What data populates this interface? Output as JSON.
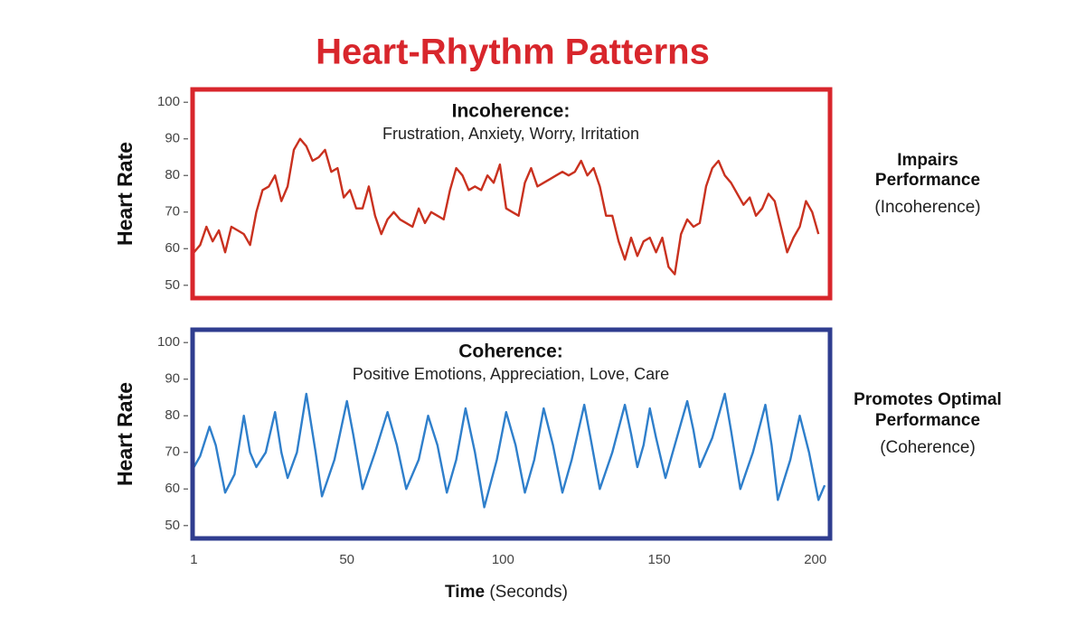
{
  "title": "Heart-Rhythm Patterns",
  "chart_data": [
    {
      "type": "line",
      "title": "Incoherence:",
      "subtitle": "Frustration, Anxiety, Worry, Irritation",
      "ylabel": "Heart Rate",
      "x": [
        1,
        3,
        5,
        7,
        9,
        11,
        13,
        15,
        17,
        19,
        21,
        23,
        25,
        27,
        29,
        31,
        33,
        35,
        37,
        39,
        41,
        43,
        45,
        47,
        49,
        51,
        53,
        55,
        57,
        59,
        61,
        63,
        65,
        67,
        69,
        71,
        73,
        75,
        77,
        79,
        81,
        83,
        85,
        87,
        89,
        91,
        93,
        95,
        97,
        99,
        101,
        103,
        105,
        107,
        109,
        111,
        113,
        115,
        117,
        119,
        121,
        123,
        125,
        127,
        129,
        131,
        133,
        135,
        137,
        139,
        141,
        143,
        145,
        147,
        149,
        151,
        153,
        155,
        157,
        159,
        161,
        163,
        165,
        167,
        169,
        171,
        173,
        175,
        177,
        179,
        181,
        183,
        185,
        187,
        189,
        191,
        193,
        195,
        197,
        199,
        201
      ],
      "values": [
        59,
        61,
        66,
        62,
        65,
        59,
        66,
        65,
        64,
        61,
        70,
        76,
        77,
        80,
        73,
        77,
        87,
        90,
        88,
        84,
        85,
        87,
        81,
        82,
        74,
        76,
        71,
        71,
        77,
        69,
        64,
        68,
        70,
        68,
        67,
        66,
        71,
        67,
        70,
        69,
        68,
        76,
        82,
        80,
        76,
        77,
        76,
        80,
        78,
        83,
        71,
        70,
        69,
        78,
        82,
        77,
        78,
        79,
        80,
        81,
        80,
        81,
        84,
        80,
        82,
        77,
        69,
        69,
        62,
        57,
        63,
        58,
        62,
        63,
        59,
        63,
        55,
        53,
        64,
        68,
        66,
        67,
        77,
        82,
        84,
        80,
        78,
        75,
        72,
        74,
        69,
        71,
        75,
        73,
        66,
        59,
        63,
        66,
        73,
        70,
        64
      ],
      "color": "#c9311f",
      "frame_color": "#d8262c",
      "xlim": [
        0,
        205
      ],
      "ylim": [
        46,
        104
      ],
      "yticks": [
        50,
        60,
        70,
        80,
        90,
        100
      ],
      "side_label": [
        "Impairs",
        "Performance"
      ],
      "side_note": "(Incoherence)"
    },
    {
      "type": "line",
      "title": "Coherence:",
      "subtitle": "Positive Emotions, Appreciation, Love, Care",
      "ylabel": "Heart Rate",
      "x": [
        1,
        3,
        6,
        8,
        11,
        14,
        17,
        19,
        21,
        24,
        27,
        29,
        31,
        34,
        37,
        40,
        42,
        46,
        50,
        52,
        55,
        59,
        63,
        66,
        69,
        73,
        76,
        79,
        82,
        85,
        88,
        91,
        94,
        98,
        101,
        104,
        107,
        110,
        113,
        116,
        119,
        122,
        126,
        128,
        131,
        135,
        139,
        141,
        143,
        145,
        147,
        149,
        152,
        155,
        159,
        161,
        163,
        167,
        171,
        173,
        176,
        180,
        184,
        186,
        188,
        192,
        195,
        198,
        201,
        203
      ],
      "values": [
        66,
        69,
        77,
        72,
        59,
        64,
        80,
        70,
        66,
        70,
        81,
        70,
        63,
        70,
        86,
        70,
        58,
        68,
        84,
        75,
        60,
        70,
        81,
        72,
        60,
        68,
        80,
        72,
        59,
        68,
        82,
        70,
        55,
        68,
        81,
        72,
        59,
        68,
        82,
        72,
        59,
        68,
        83,
        74,
        60,
        70,
        83,
        75,
        66,
        72,
        82,
        74,
        63,
        72,
        84,
        76,
        66,
        74,
        86,
        76,
        60,
        70,
        83,
        72,
        57,
        68,
        80,
        70,
        57,
        61
      ],
      "color": "#2f7fcb",
      "frame_color": "#2f3d8f",
      "xlim": [
        0,
        205
      ],
      "ylim": [
        46,
        104
      ],
      "yticks": [
        50,
        60,
        70,
        80,
        90,
        100
      ],
      "xticks": [
        1,
        50,
        100,
        150,
        200
      ],
      "xlabel": "Time",
      "xlabel_unit": "(Seconds)",
      "side_label": [
        "Promotes Optimal",
        "Performance"
      ],
      "side_note": "(Coherence)"
    }
  ]
}
